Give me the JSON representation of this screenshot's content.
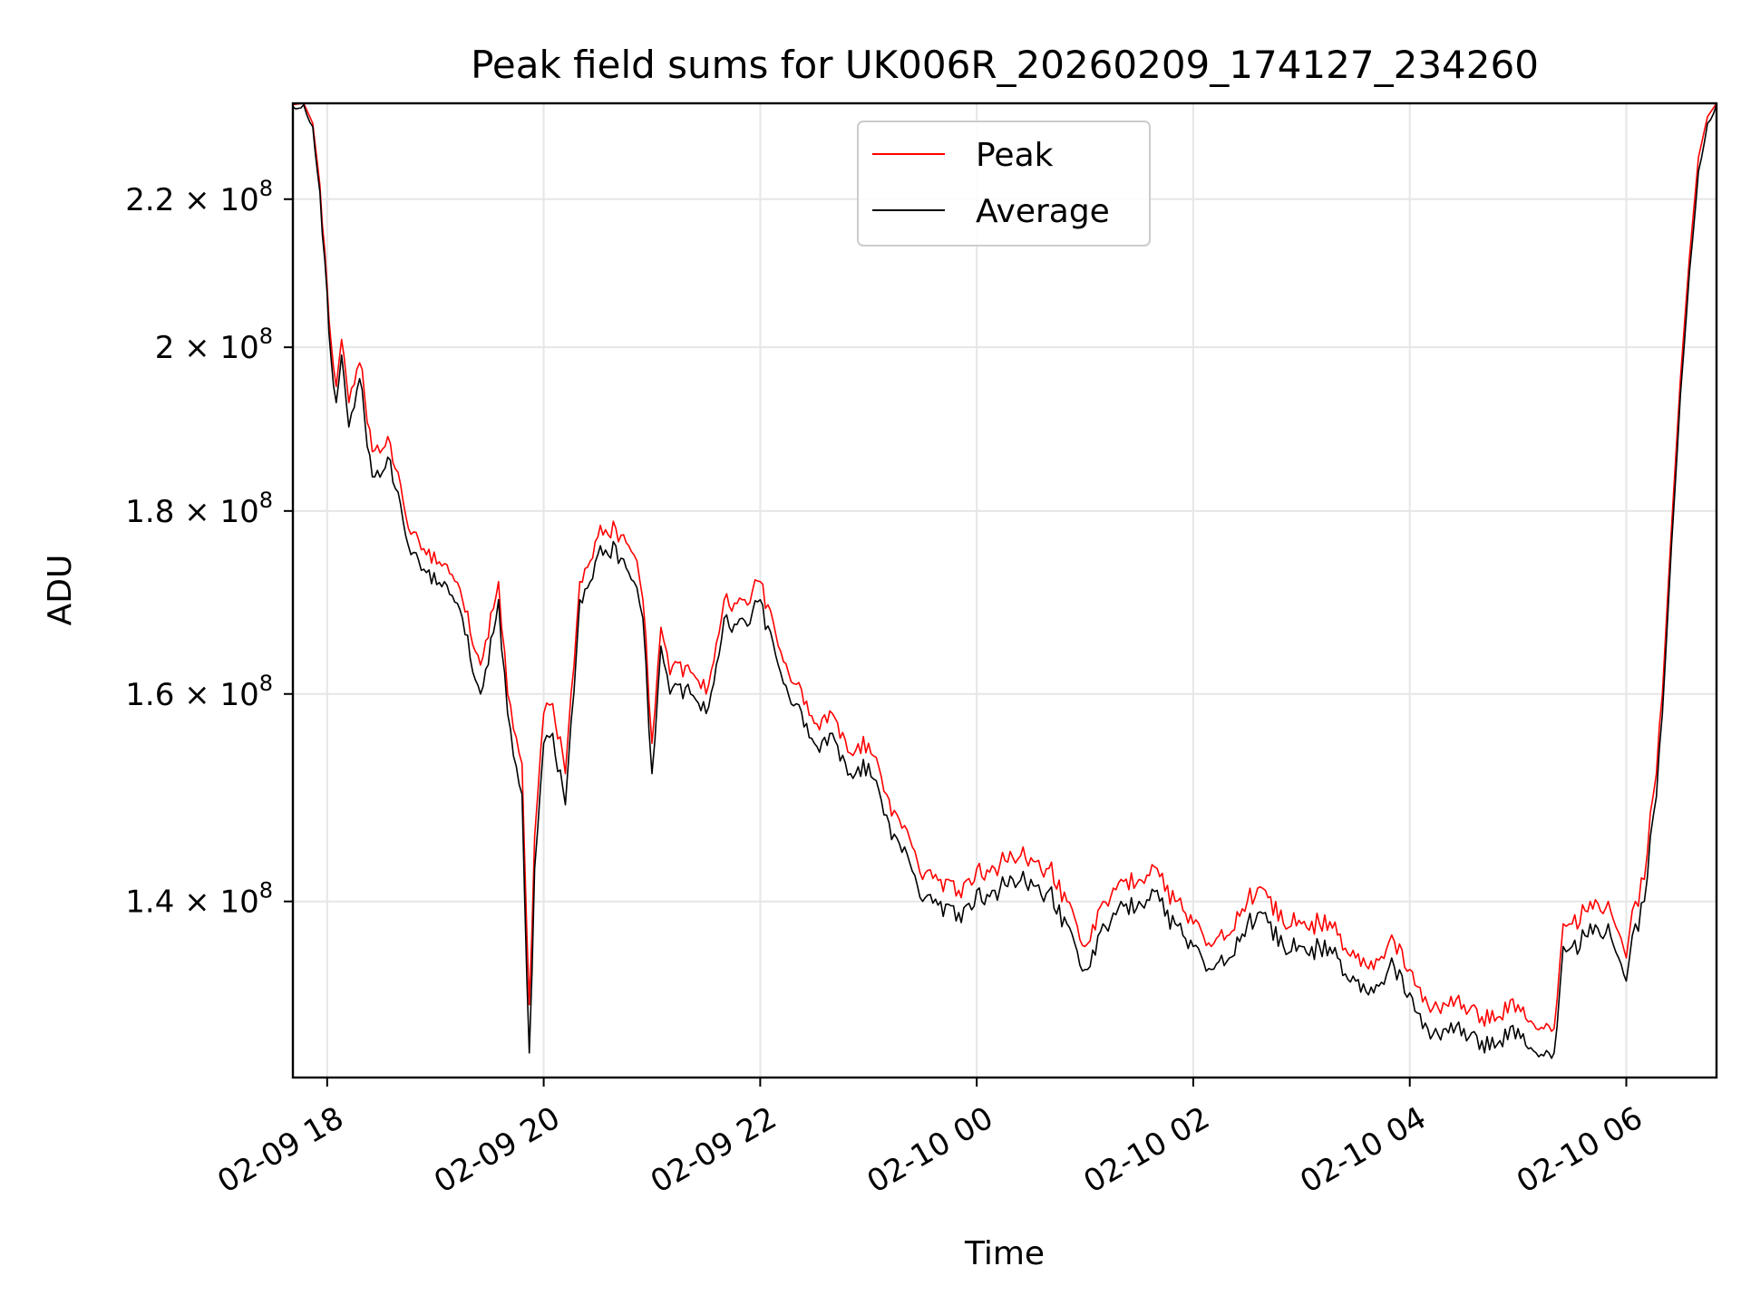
{
  "chart_data": {
    "type": "line",
    "title": "Peak field sums for UK006R_20260209_174127_234260",
    "xlabel": "Time",
    "ylabel": "ADU",
    "y_scale": "log",
    "grid": true,
    "legend_position": "upper center",
    "xlim": [
      "2026-02-09 17:41",
      "2026-02-10 06:50"
    ],
    "ylim": [
      125000000,
      234000000
    ],
    "x_ticks": [
      "2026-02-09 18:00",
      "2026-02-09 20:00",
      "2026-02-09 22:00",
      "2026-02-10 00:00",
      "2026-02-10 02:00",
      "2026-02-10 04:00",
      "2026-02-10 06:00"
    ],
    "x_tick_labels": [
      "02-09 18",
      "02-09 20",
      "02-09 22",
      "02-10 00",
      "02-10 02",
      "02-10 04",
      "02-10 06"
    ],
    "y_ticks": [
      140000000,
      160000000,
      180000000,
      200000000,
      220000000
    ],
    "y_tick_labels": [
      {
        "mantissa": "1.4 × 10",
        "exp": "8"
      },
      {
        "mantissa": "1.6 × 10",
        "exp": "8"
      },
      {
        "mantissa": "1.8 × 10",
        "exp": "8"
      },
      {
        "mantissa": "2 × 10",
        "exp": "8"
      },
      {
        "mantissa": "2.2 × 10",
        "exp": "8"
      }
    ],
    "series": [
      {
        "name": "Peak",
        "color": "#ff0000",
        "x": [
          "2026-02-09 17:41",
          "2026-02-09 17:47",
          "2026-02-09 17:52",
          "2026-02-09 17:56",
          "2026-02-09 18:00",
          "2026-02-09 18:02",
          "2026-02-09 18:05",
          "2026-02-09 18:08",
          "2026-02-09 18:12",
          "2026-02-09 18:18",
          "2026-02-09 18:25",
          "2026-02-09 18:35",
          "2026-02-09 18:45",
          "2026-02-09 18:55",
          "2026-02-09 19:05",
          "2026-02-09 19:15",
          "2026-02-09 19:25",
          "2026-02-09 19:35",
          "2026-02-09 19:40",
          "2026-02-09 19:48",
          "2026-02-09 19:52",
          "2026-02-09 19:55",
          "2026-02-09 20:00",
          "2026-02-09 20:05",
          "2026-02-09 20:12",
          "2026-02-09 20:20",
          "2026-02-09 20:30",
          "2026-02-09 20:40",
          "2026-02-09 20:50",
          "2026-02-09 20:55",
          "2026-02-09 21:00",
          "2026-02-09 21:05",
          "2026-02-09 21:10",
          "2026-02-09 21:20",
          "2026-02-09 21:30",
          "2026-02-09 21:40",
          "2026-02-09 21:50",
          "2026-02-09 22:00",
          "2026-02-09 22:10",
          "2026-02-09 22:20",
          "2026-02-09 22:30",
          "2026-02-09 22:40",
          "2026-02-09 22:50",
          "2026-02-09 23:00",
          "2026-02-09 23:10",
          "2026-02-09 23:20",
          "2026-02-09 23:30",
          "2026-02-09 23:40",
          "2026-02-09 23:50",
          "2026-02-10 00:00",
          "2026-02-10 00:10",
          "2026-02-10 00:20",
          "2026-02-10 00:30",
          "2026-02-10 00:40",
          "2026-02-10 00:50",
          "2026-02-10 01:00",
          "2026-02-10 01:10",
          "2026-02-10 01:20",
          "2026-02-10 01:30",
          "2026-02-10 01:40",
          "2026-02-10 01:50",
          "2026-02-10 02:00",
          "2026-02-10 02:10",
          "2026-02-10 02:20",
          "2026-02-10 02:30",
          "2026-02-10 02:40",
          "2026-02-10 02:50",
          "2026-02-10 03:00",
          "2026-02-10 03:10",
          "2026-02-10 03:20",
          "2026-02-10 03:30",
          "2026-02-10 03:40",
          "2026-02-10 03:50",
          "2026-02-10 04:00",
          "2026-02-10 04:10",
          "2026-02-10 04:20",
          "2026-02-10 04:30",
          "2026-02-10 04:40",
          "2026-02-10 04:50",
          "2026-02-10 05:00",
          "2026-02-10 05:10",
          "2026-02-10 05:20",
          "2026-02-10 05:25",
          "2026-02-10 05:30",
          "2026-02-10 05:40",
          "2026-02-10 05:50",
          "2026-02-10 06:00",
          "2026-02-10 06:05",
          "2026-02-10 06:10",
          "2026-02-10 06:15",
          "2026-02-10 06:20",
          "2026-02-10 06:25",
          "2026-02-10 06:30",
          "2026-02-10 06:35",
          "2026-02-10 06:40",
          "2026-02-10 06:45",
          "2026-02-10 06:50"
        ],
        "values": [
          233800000,
          234000000,
          231000000,
          222000000,
          208000000,
          201000000,
          195000000,
          201000000,
          193000000,
          198000000,
          187000000,
          188000000,
          178000000,
          175000000,
          174000000,
          170000000,
          163000000,
          172000000,
          160000000,
          153000000,
          131000000,
          146000000,
          158000000,
          159000000,
          152000000,
          172000000,
          177000000,
          178000000,
          175000000,
          170000000,
          155000000,
          167000000,
          162000000,
          163000000,
          160000000,
          170000000,
          170000000,
          172000000,
          165000000,
          161000000,
          157000000,
          158000000,
          154000000,
          155000000,
          150000000,
          147000000,
          142000000,
          142000000,
          141000000,
          143000000,
          143000000,
          144000000,
          144000000,
          143000000,
          140000000,
          136000000,
          140000000,
          142000000,
          142000000,
          143000000,
          140000000,
          138000000,
          136000000,
          137000000,
          140000000,
          141000000,
          138000000,
          138000000,
          138000000,
          137000000,
          135000000,
          134000000,
          137000000,
          134000000,
          131000000,
          131000000,
          131000000,
          130000000,
          130000000,
          131000000,
          129000000,
          129000000,
          138000000,
          138000000,
          140000000,
          140000000,
          135000000,
          140000000,
          142000000,
          150000000,
          160000000,
          178000000,
          196000000,
          212000000,
          226000000,
          232000000,
          234000000
        ]
      },
      {
        "name": "Average",
        "color": "#000000",
        "x": [
          "2026-02-09 17:41",
          "2026-02-09 17:47",
          "2026-02-09 17:52",
          "2026-02-09 17:56",
          "2026-02-09 18:00",
          "2026-02-09 18:02",
          "2026-02-09 18:05",
          "2026-02-09 18:08",
          "2026-02-09 18:12",
          "2026-02-09 18:18",
          "2026-02-09 18:25",
          "2026-02-09 18:35",
          "2026-02-09 18:45",
          "2026-02-09 18:55",
          "2026-02-09 19:05",
          "2026-02-09 19:15",
          "2026-02-09 19:25",
          "2026-02-09 19:35",
          "2026-02-09 19:40",
          "2026-02-09 19:48",
          "2026-02-09 19:52",
          "2026-02-09 19:55",
          "2026-02-09 20:00",
          "2026-02-09 20:05",
          "2026-02-09 20:12",
          "2026-02-09 20:20",
          "2026-02-09 20:30",
          "2026-02-09 20:40",
          "2026-02-09 20:50",
          "2026-02-09 20:55",
          "2026-02-09 21:00",
          "2026-02-09 21:05",
          "2026-02-09 21:10",
          "2026-02-09 21:20",
          "2026-02-09 21:30",
          "2026-02-09 21:40",
          "2026-02-09 21:50",
          "2026-02-09 22:00",
          "2026-02-09 22:10",
          "2026-02-09 22:20",
          "2026-02-09 22:30",
          "2026-02-09 22:40",
          "2026-02-09 22:50",
          "2026-02-09 23:00",
          "2026-02-09 23:10",
          "2026-02-09 23:20",
          "2026-02-09 23:30",
          "2026-02-09 23:40",
          "2026-02-09 23:50",
          "2026-02-10 00:00",
          "2026-02-10 00:10",
          "2026-02-10 00:20",
          "2026-02-10 00:30",
          "2026-02-10 00:40",
          "2026-02-10 00:50",
          "2026-02-10 01:00",
          "2026-02-10 01:10",
          "2026-02-10 01:20",
          "2026-02-10 01:30",
          "2026-02-10 01:40",
          "2026-02-10 01:50",
          "2026-02-10 02:00",
          "2026-02-10 02:10",
          "2026-02-10 02:20",
          "2026-02-10 02:30",
          "2026-02-10 02:40",
          "2026-02-10 02:50",
          "2026-02-10 03:00",
          "2026-02-10 03:10",
          "2026-02-10 03:20",
          "2026-02-10 03:30",
          "2026-02-10 03:40",
          "2026-02-10 03:50",
          "2026-02-10 04:00",
          "2026-02-10 04:10",
          "2026-02-10 04:20",
          "2026-02-10 04:30",
          "2026-02-10 04:40",
          "2026-02-10 04:50",
          "2026-02-10 05:00",
          "2026-02-10 05:10",
          "2026-02-10 05:20",
          "2026-02-10 05:25",
          "2026-02-10 05:30",
          "2026-02-10 05:40",
          "2026-02-10 05:50",
          "2026-02-10 06:00",
          "2026-02-10 06:05",
          "2026-02-10 06:10",
          "2026-02-10 06:15",
          "2026-02-10 06:20",
          "2026-02-10 06:25",
          "2026-02-10 06:30",
          "2026-02-10 06:35",
          "2026-02-10 06:40",
          "2026-02-10 06:45",
          "2026-02-10 06:50"
        ],
        "values": [
          233500000,
          233800000,
          230500000,
          221000000,
          207000000,
          199000000,
          193000000,
          199000000,
          190000000,
          196000000,
          184000000,
          186000000,
          176000000,
          173000000,
          172000000,
          168000000,
          160000000,
          170000000,
          158000000,
          150000000,
          127000000,
          143000000,
          155000000,
          156000000,
          149000000,
          170000000,
          175000000,
          176000000,
          172000000,
          168000000,
          152000000,
          165000000,
          160000000,
          161000000,
          158000000,
          168000000,
          168000000,
          170000000,
          163000000,
          159000000,
          155000000,
          156000000,
          152000000,
          153000000,
          148000000,
          145000000,
          140000000,
          140000000,
          139000000,
          141000000,
          141000000,
          142000000,
          142000000,
          141000000,
          138000000,
          134000000,
          138000000,
          140000000,
          140000000,
          141000000,
          138000000,
          136000000,
          134000000,
          135000000,
          138000000,
          139000000,
          136000000,
          136000000,
          136000000,
          135000000,
          133000000,
          132000000,
          135000000,
          132000000,
          129000000,
          129000000,
          129000000,
          128000000,
          128000000,
          129000000,
          127000000,
          127000000,
          136000000,
          136000000,
          138000000,
          138000000,
          133000000,
          138000000,
          140000000,
          148000000,
          158000000,
          176000000,
          194000000,
          210000000,
          224000000,
          231000000,
          233800000
        ]
      }
    ]
  }
}
